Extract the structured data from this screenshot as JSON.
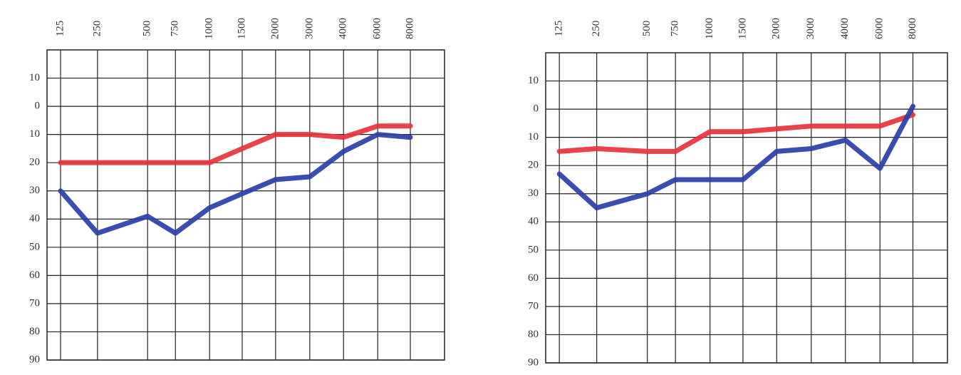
{
  "chart_data": [
    {
      "type": "line",
      "categories": [
        "125",
        "250",
        "500",
        "750",
        "1000",
        "1500",
        "2000",
        "3000",
        "4000",
        "6000",
        "8000"
      ],
      "series": [
        {
          "color": "#e8323c",
          "values": [
            20,
            20,
            20,
            20,
            20,
            15,
            10,
            10,
            11,
            7,
            7
          ]
        },
        {
          "color": "#2a3fa8",
          "values": [
            30,
            45,
            39,
            45,
            36,
            31,
            26,
            25,
            16,
            10,
            11
          ]
        }
      ],
      "ylim": [
        -20,
        90
      ],
      "yreverse": true,
      "yticks": [
        {
          "value": -10,
          "label": "10"
        },
        0,
        10,
        20,
        30,
        40,
        50,
        60,
        70,
        80,
        90
      ],
      "grid": true
    },
    {
      "type": "line",
      "categories": [
        "125",
        "250",
        "500",
        "750",
        "1000",
        "1500",
        "2000",
        "3000",
        "4000",
        "6000",
        "8000"
      ],
      "series": [
        {
          "color": "#e8323c",
          "values": [
            15,
            14,
            15,
            15,
            8,
            8,
            7,
            6,
            6,
            6,
            2
          ]
        },
        {
          "color": "#2a3fa8",
          "values": [
            23,
            35,
            30,
            25,
            25,
            25,
            15,
            14,
            11,
            21,
            -1
          ]
        }
      ],
      "ylim": [
        -20,
        90
      ],
      "yreverse": true,
      "yticks": [
        {
          "value": -10,
          "label": "10"
        },
        0,
        10,
        20,
        30,
        40,
        50,
        60,
        70,
        80,
        90
      ],
      "grid": true
    }
  ]
}
